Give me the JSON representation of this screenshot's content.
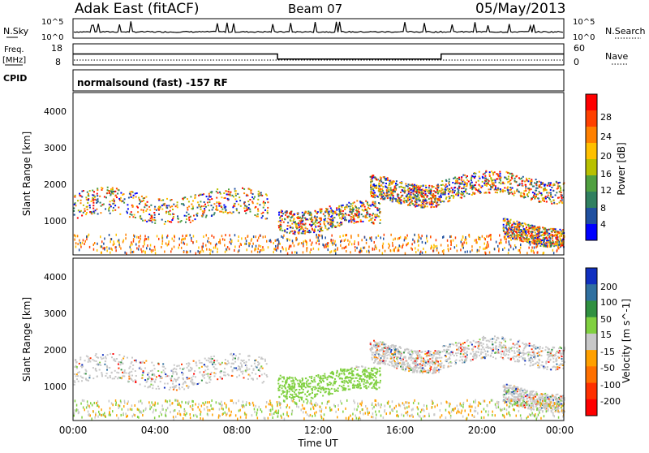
{
  "header": {
    "station": "Adak East (fitACF)",
    "beam": "Beam 07",
    "date": "05/May/2013"
  },
  "noise_panel": {
    "left_label": "N.Sky",
    "right_label": "N.Search",
    "ticks": [
      "10^5",
      "10^0"
    ]
  },
  "freq_panel": {
    "left_label_1": "Freq.",
    "left_label_2": "[MHz]",
    "left_ticks": [
      "18",
      "8"
    ],
    "right_label": "Nave",
    "right_ticks": [
      "60",
      "0"
    ]
  },
  "cpid": {
    "label": "CPID",
    "value": "normalsound (fast) -157 RF"
  },
  "panels": {
    "ylabel": "Slant Range [km]",
    "yticks": [
      "4000",
      "3000",
      "2000",
      "1000"
    ],
    "xlabel": "Time UT",
    "xticks": [
      "00:00",
      "04:00",
      "08:00",
      "12:00",
      "16:00",
      "20:00",
      "00:00"
    ]
  },
  "power_colorbar": {
    "label": "Power [dB]",
    "ticks": [
      "28",
      "24",
      "20",
      "16",
      "12",
      "8",
      "4"
    ],
    "colors": [
      "#ff0000",
      "#ff4000",
      "#ff8000",
      "#ffc000",
      "#b8c000",
      "#50a040",
      "#308060",
      "#2050a0",
      "#0000ff"
    ]
  },
  "velocity_colorbar": {
    "label": "Velocity [m s^-1]",
    "ticks": [
      "200",
      "100",
      "50",
      "15",
      "-15",
      "-50",
      "-100",
      "-200"
    ],
    "colors": [
      "#1030c0",
      "#3070a0",
      "#309040",
      "#80d040",
      "#c8c8c8",
      "#ffa000",
      "#ff7000",
      "#ff3000",
      "#ff0000"
    ]
  },
  "chart_data": [
    {
      "type": "line",
      "title": "Adak East (fitACF) Beam 07 05/May/2013",
      "ylabel": "Freq. [MHz]",
      "x": [
        "00:00",
        "10:00",
        "10:00",
        "18:00",
        "18:00",
        "24:00"
      ],
      "series": [
        {
          "name": "",
          "values": [
            13.5,
            13.5,
            10.5,
            10.5,
            13.5,
            13.5
          ]
        }
      ],
      "ylim": [
        8,
        18
      ]
    },
    {
      "type": "heatmap",
      "ylabel": "Slant Range [km]",
      "xlabel": "Time UT",
      "xlim": [
        "00:00",
        "24:00"
      ],
      "ylim": [
        180,
        4500
      ],
      "colorbar": "Power [dB]",
      "colorbar_range": [
        0,
        30
      ]
    },
    {
      "type": "heatmap",
      "ylabel": "Slant Range [km]",
      "xlabel": "Time UT",
      "xlim": [
        "00:00",
        "24:00"
      ],
      "ylim": [
        180,
        4500
      ],
      "colorbar": "Velocity [m s^-1]",
      "colorbar_range": [
        -200,
        200
      ]
    }
  ]
}
